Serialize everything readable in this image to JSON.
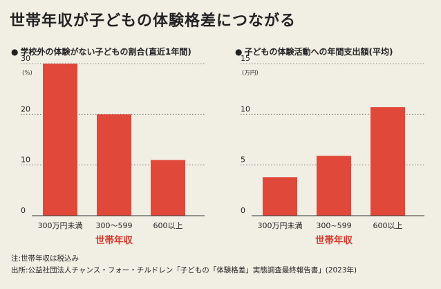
{
  "title": "世帯年収が子どもの体験格差につながる",
  "note": "注:世帯年収は税込み",
  "source": "出所:公益社団法人チャンス・フォー・チルドレン「子どもの「体験格差」実態調査最終報告書」(2023年)",
  "colors": {
    "bar": "#e0483a",
    "accent_text": "#d8392b",
    "text": "#222222",
    "background": "#f1eee4"
  },
  "chart_data": [
    {
      "type": "bar",
      "title": "学校外の体験がない子どもの割合(直近1年間)",
      "unit": "(%)",
      "xlabel": "世帯年収",
      "ylabel": "",
      "categories": [
        "300万円未満",
        "300～599",
        "600以上"
      ],
      "values": [
        30,
        20,
        11
      ],
      "ylim": [
        0,
        30
      ],
      "yticks": [
        0,
        10,
        20,
        30
      ],
      "grid": "dotted horizontal"
    },
    {
      "type": "bar",
      "title": "子どもの体験活動への年間支出額(平均)",
      "unit": "(万円)",
      "xlabel": "世帯年収",
      "ylabel": "",
      "categories": [
        "300万円未満",
        "300~599",
        "600以上"
      ],
      "values": [
        3.8,
        5.9,
        10.7
      ],
      "ylim": [
        0,
        15
      ],
      "yticks": [
        0,
        5,
        10,
        15
      ],
      "grid": "dotted horizontal"
    }
  ]
}
